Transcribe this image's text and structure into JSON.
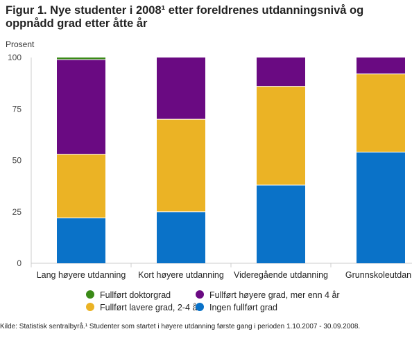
{
  "chart_data": {
    "type": "bar",
    "stacked": true,
    "title": "Figur 1. Nye studenter i 2008¹ etter foreldrenes utdanningsnivå og oppnådd grad etter åtte år",
    "ylabel": "Prosent",
    "ylim": [
      0,
      100
    ],
    "yticks": [
      0,
      25,
      50,
      75,
      100
    ],
    "grid": false,
    "legend_position": "bottom",
    "categories": [
      "Lang høyere utdanning",
      "Kort høyere utdanning",
      "Videregående utdanning",
      "Grunnskoleutdanning"
    ],
    "category_labels": [
      "Lang høyere utdanning",
      "Kort høyere utdanning",
      "Videregående utdanning",
      "Grunnskoleutdann"
    ],
    "series": [
      {
        "name": "Ingen fullført grad",
        "color": "#0a72c8",
        "values": [
          22,
          25,
          38,
          54
        ]
      },
      {
        "name": "Fullført lavere grad, 2-4 år",
        "color": "#ebb325",
        "values": [
          31,
          45,
          48,
          38
        ]
      },
      {
        "name": "Fullført høyere grad, mer enn 4 år",
        "color": "#6a0a82",
        "values": [
          46,
          30,
          14,
          8
        ]
      },
      {
        "name": "Fullført doktorgrad",
        "color": "#3a8a17",
        "values": [
          1,
          0,
          0,
          0
        ]
      }
    ],
    "legend_order": [
      "Fullført doktorgrad",
      "Fullført høyere grad, mer enn 4 år",
      "Fullført lavere grad, 2-4 år",
      "Ingen fullført grad"
    ]
  },
  "source": "Kilde: Statistisk sentralbyrå.¹ Studenter som startet i høyere utdanning første gang i perioden 1.10.2007 - 30.09.2008."
}
